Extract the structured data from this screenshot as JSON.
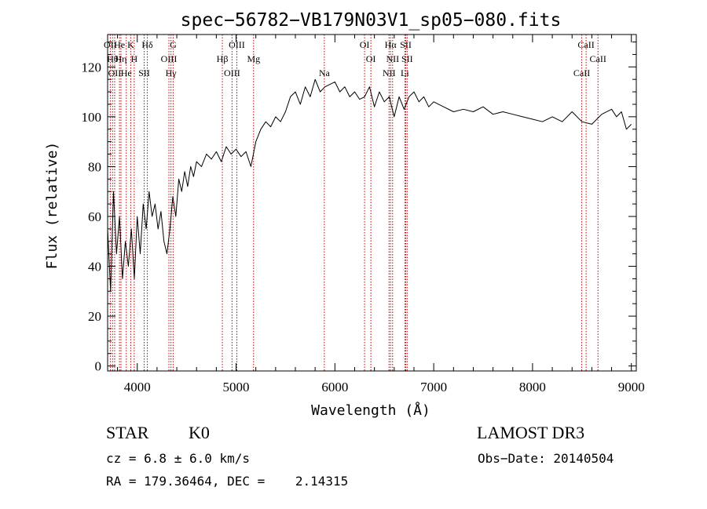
{
  "chart_data": {
    "type": "line",
    "title": "spec−56782−VB179N03V1_sp05−080.fits",
    "xlabel": "Wavelength (Å)",
    "ylabel": "Flux (relative)",
    "xlim": [
      3700,
      9050
    ],
    "ylim": [
      -2,
      133
    ],
    "xticks": [
      4000,
      5000,
      6000,
      7000,
      8000,
      9000
    ],
    "yticks": [
      0,
      20,
      40,
      60,
      80,
      100,
      120
    ],
    "grid": false,
    "series": [
      {
        "color": "#000000",
        "x": [
          3700,
          3730,
          3760,
          3790,
          3820,
          3850,
          3880,
          3910,
          3940,
          3970,
          4000,
          4030,
          4060,
          4090,
          4120,
          4150,
          4180,
          4210,
          4240,
          4270,
          4300,
          4330,
          4360,
          4390,
          4420,
          4450,
          4480,
          4510,
          4540,
          4570,
          4600,
          4650,
          4700,
          4750,
          4800,
          4850,
          4900,
          4950,
          5000,
          5050,
          5100,
          5150,
          5200,
          5250,
          5300,
          5350,
          5400,
          5450,
          5500,
          5550,
          5600,
          5650,
          5700,
          5750,
          5800,
          5850,
          5900,
          5950,
          6000,
          6050,
          6100,
          6150,
          6200,
          6250,
          6300,
          6350,
          6400,
          6450,
          6500,
          6550,
          6600,
          6650,
          6700,
          6750,
          6800,
          6850,
          6900,
          6950,
          7000,
          7100,
          7200,
          7300,
          7400,
          7500,
          7600,
          7700,
          7800,
          7900,
          8000,
          8100,
          8200,
          8300,
          8400,
          8500,
          8600,
          8700,
          8800,
          8850,
          8900,
          8950,
          9000
        ],
        "y": [
          55,
          30,
          70,
          45,
          60,
          35,
          50,
          40,
          55,
          35,
          60,
          45,
          65,
          55,
          70,
          60,
          65,
          55,
          62,
          50,
          45,
          55,
          68,
          60,
          75,
          70,
          78,
          72,
          80,
          76,
          82,
          80,
          85,
          83,
          86,
          82,
          88,
          85,
          87,
          84,
          86,
          80,
          90,
          95,
          98,
          96,
          100,
          98,
          102,
          108,
          110,
          105,
          112,
          108,
          115,
          110,
          112,
          113,
          114,
          110,
          112,
          108,
          110,
          107,
          108,
          112,
          104,
          110,
          106,
          108,
          100,
          108,
          103,
          108,
          110,
          106,
          108,
          104,
          106,
          104,
          102,
          103,
          102,
          104,
          101,
          102,
          101,
          100,
          99,
          98,
          100,
          98,
          102,
          98,
          97,
          101,
          103,
          100,
          102,
          95,
          97
        ]
      }
    ],
    "lines": [
      {
        "x": 3727,
        "label": "OII"
      },
      {
        "x": 3750,
        "label": "Hθ"
      },
      {
        "x": 3771,
        "label": "OII"
      },
      {
        "x": 3820,
        "label": "He"
      },
      {
        "x": 3835,
        "label": "Hη"
      },
      {
        "x": 3889,
        "label": "He"
      },
      {
        "x": 3934,
        "label": "K"
      },
      {
        "x": 3969,
        "label": "H"
      },
      {
        "x": 4070,
        "label": "SII"
      },
      {
        "x": 4102,
        "label": "Hδ"
      },
      {
        "x": 4320,
        "label": "OIII"
      },
      {
        "x": 4341,
        "label": "Hγ"
      },
      {
        "x": 4363,
        "label": "G"
      },
      {
        "x": 4861,
        "label": "Hβ"
      },
      {
        "x": 4959,
        "label": "OIII"
      },
      {
        "x": 5007,
        "label": "OIII"
      },
      {
        "x": 5177,
        "label": "Mg"
      },
      {
        "x": 5893,
        "label": "Na"
      },
      {
        "x": 6300,
        "label": "OI"
      },
      {
        "x": 6364,
        "label": "OI"
      },
      {
        "x": 6548,
        "label": "NII"
      },
      {
        "x": 6563,
        "label": "Hα"
      },
      {
        "x": 6584,
        "label": "NII"
      },
      {
        "x": 6708,
        "label": "Li"
      },
      {
        "x": 6717,
        "label": "SII"
      },
      {
        "x": 6731,
        "label": "SII"
      },
      {
        "x": 8498,
        "label": "CaII"
      },
      {
        "x": 8542,
        "label": "CaII"
      },
      {
        "x": 8662,
        "label": "CaII"
      }
    ]
  },
  "info": {
    "object_class": "STAR",
    "subclass": "K0",
    "survey": "LAMOST DR3",
    "velocity": "cz = 6.8 ± 6.0 km/s",
    "obs_date": "Obs−Date: 20140504",
    "coords": "RA = 179.36464, DEC =    2.14315"
  }
}
